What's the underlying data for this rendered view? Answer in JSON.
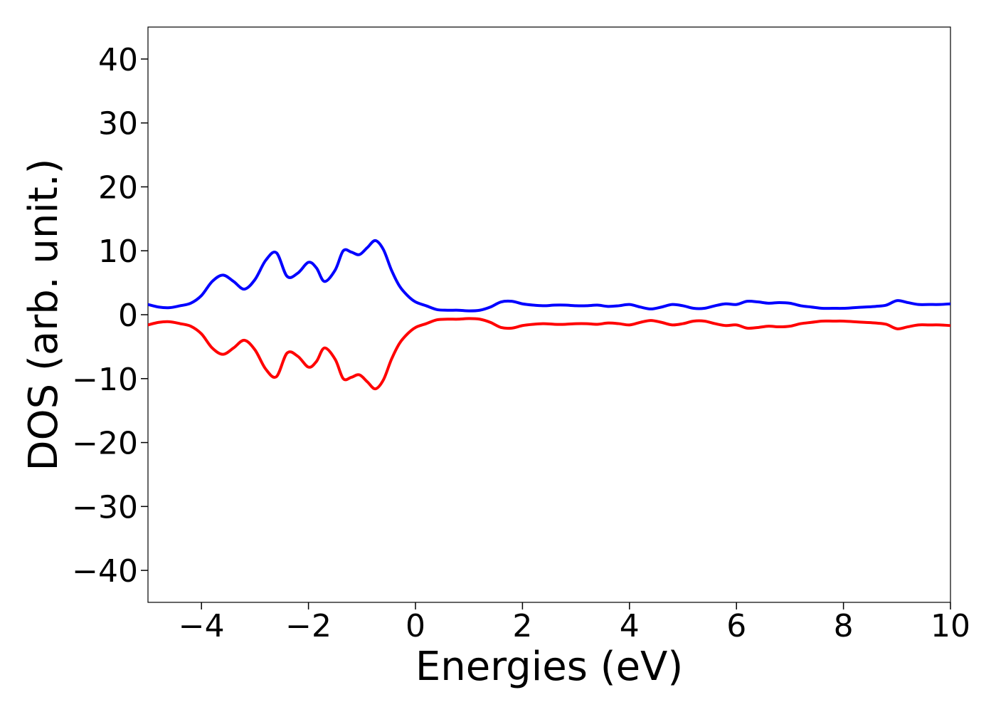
{
  "chart_data": {
    "type": "line",
    "title": "",
    "xlabel": "Energies (eV)",
    "ylabel": "DOS (arb. unit.)",
    "xlim": [
      -5,
      10
    ],
    "ylim": [
      -45,
      45
    ],
    "grid": false,
    "x_ticks": [
      -4,
      -2,
      0,
      2,
      4,
      6,
      8,
      10
    ],
    "x_tick_labels": [
      "−4",
      "−2",
      "0",
      "2",
      "4",
      "6",
      "8",
      "10"
    ],
    "y_ticks": [
      40,
      30,
      20,
      10,
      0,
      -10,
      -20,
      -30,
      -40
    ],
    "y_tick_labels": [
      "40",
      "30",
      "20",
      "10",
      "0",
      "−10",
      "−20",
      "−30",
      "−40"
    ],
    "series": [
      {
        "color": "#0000ff",
        "x": [
          -5.0,
          -4.8,
          -4.6,
          -4.4,
          -4.2,
          -4.0,
          -3.8,
          -3.6,
          -3.4,
          -3.2,
          -3.0,
          -2.8,
          -2.6,
          -2.4,
          -2.2,
          -2.0,
          -1.85,
          -1.7,
          -1.5,
          -1.35,
          -1.2,
          -1.05,
          -0.9,
          -0.75,
          -0.6,
          -0.45,
          -0.3,
          -0.15,
          0.0,
          0.2,
          0.4,
          0.6,
          0.8,
          1.0,
          1.2,
          1.4,
          1.6,
          1.8,
          2.0,
          2.2,
          2.4,
          2.6,
          2.8,
          3.0,
          3.2,
          3.4,
          3.6,
          3.8,
          4.0,
          4.2,
          4.4,
          4.6,
          4.8,
          5.0,
          5.2,
          5.4,
          5.6,
          5.8,
          6.0,
          6.2,
          6.4,
          6.6,
          6.8,
          7.0,
          7.2,
          7.4,
          7.6,
          7.8,
          8.0,
          8.2,
          8.4,
          8.6,
          8.8,
          9.0,
          9.2,
          9.4,
          9.6,
          9.8,
          10.0
        ],
        "y": [
          1.6,
          1.2,
          1.1,
          1.4,
          1.8,
          3.0,
          5.2,
          6.2,
          5.2,
          4.0,
          5.5,
          8.5,
          9.7,
          6.0,
          6.5,
          8.2,
          7.3,
          5.2,
          7.0,
          10.0,
          9.8,
          9.4,
          10.5,
          11.6,
          10.2,
          7.0,
          4.5,
          3.0,
          2.0,
          1.4,
          0.8,
          0.7,
          0.7,
          0.6,
          0.7,
          1.2,
          2.0,
          2.1,
          1.7,
          1.5,
          1.4,
          1.5,
          1.5,
          1.4,
          1.4,
          1.5,
          1.3,
          1.4,
          1.6,
          1.2,
          0.9,
          1.2,
          1.6,
          1.4,
          1.0,
          1.0,
          1.4,
          1.7,
          1.6,
          2.1,
          2.0,
          1.8,
          1.9,
          1.8,
          1.4,
          1.2,
          1.0,
          1.0,
          1.0,
          1.1,
          1.2,
          1.3,
          1.5,
          2.2,
          1.9,
          1.6,
          1.6,
          1.6,
          1.7
        ]
      },
      {
        "color": "#ff0000",
        "x": [
          -5.0,
          -4.8,
          -4.6,
          -4.4,
          -4.2,
          -4.0,
          -3.8,
          -3.6,
          -3.4,
          -3.2,
          -3.0,
          -2.8,
          -2.6,
          -2.4,
          -2.2,
          -2.0,
          -1.85,
          -1.7,
          -1.5,
          -1.35,
          -1.2,
          -1.05,
          -0.9,
          -0.75,
          -0.6,
          -0.45,
          -0.3,
          -0.15,
          0.0,
          0.2,
          0.4,
          0.6,
          0.8,
          1.0,
          1.2,
          1.4,
          1.6,
          1.8,
          2.0,
          2.2,
          2.4,
          2.6,
          2.8,
          3.0,
          3.2,
          3.4,
          3.6,
          3.8,
          4.0,
          4.2,
          4.4,
          4.6,
          4.8,
          5.0,
          5.2,
          5.4,
          5.6,
          5.8,
          6.0,
          6.2,
          6.4,
          6.6,
          6.8,
          7.0,
          7.2,
          7.4,
          7.6,
          7.8,
          8.0,
          8.2,
          8.4,
          8.6,
          8.8,
          9.0,
          9.2,
          9.4,
          9.6,
          9.8,
          10.0
        ],
        "y": [
          -1.6,
          -1.2,
          -1.1,
          -1.4,
          -1.8,
          -3.0,
          -5.2,
          -6.2,
          -5.2,
          -4.0,
          -5.5,
          -8.5,
          -9.7,
          -6.0,
          -6.5,
          -8.2,
          -7.3,
          -5.2,
          -7.0,
          -10.0,
          -9.8,
          -9.4,
          -10.5,
          -11.6,
          -10.2,
          -7.0,
          -4.5,
          -3.0,
          -2.0,
          -1.4,
          -0.8,
          -0.7,
          -0.7,
          -0.6,
          -0.7,
          -1.2,
          -2.0,
          -2.1,
          -1.7,
          -1.5,
          -1.4,
          -1.5,
          -1.5,
          -1.4,
          -1.4,
          -1.5,
          -1.3,
          -1.4,
          -1.6,
          -1.2,
          -0.9,
          -1.2,
          -1.6,
          -1.4,
          -1.0,
          -1.0,
          -1.4,
          -1.7,
          -1.6,
          -2.1,
          -2.0,
          -1.8,
          -1.9,
          -1.8,
          -1.4,
          -1.2,
          -1.0,
          -1.0,
          -1.0,
          -1.1,
          -1.2,
          -1.3,
          -1.5,
          -2.2,
          -1.9,
          -1.6,
          -1.6,
          -1.6,
          -1.7
        ]
      }
    ]
  }
}
